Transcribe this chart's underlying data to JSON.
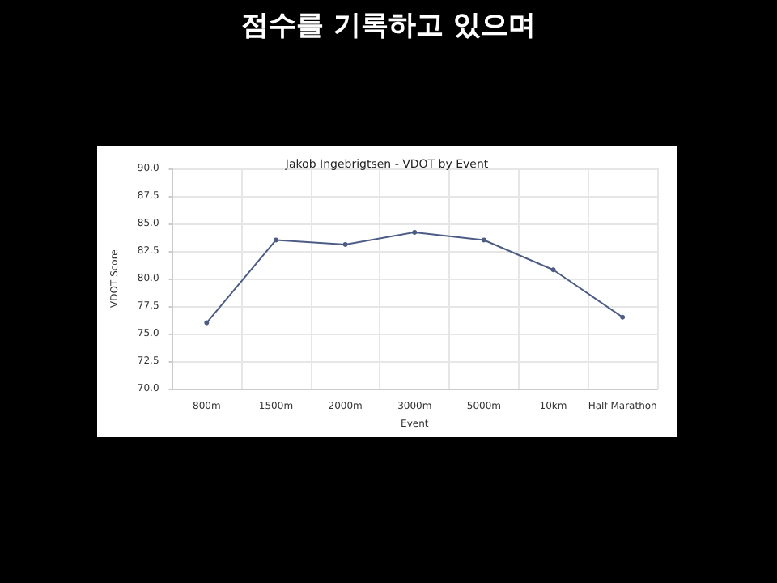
{
  "chart_data": {
    "type": "line",
    "title": "Jakob Ingebrigtsen - VDOT by Event",
    "subtitle": "점수를 기록하고 있으며",
    "xlabel": "Event",
    "ylabel": "VDOT Score",
    "categories": [
      "800m",
      "1500m",
      "2000m",
      "3000m",
      "5000m",
      "10km",
      "Half Marathon"
    ],
    "series": [
      {
        "color": "#4c5c84",
        "values": [
          76.0,
          83.5,
          83.1,
          84.2,
          83.5,
          80.8,
          76.5
        ]
      }
    ],
    "ylim": [
      70,
      90
    ],
    "yticks": [
      {
        "value": 70,
        "label": "70.0"
      },
      {
        "value": 72.5,
        "label": "72.5"
      },
      {
        "value": 75,
        "label": "75.0"
      },
      {
        "value": 77.5,
        "label": "77.5"
      },
      {
        "value": 80,
        "label": "80.0"
      },
      {
        "value": 82.5,
        "label": "82.5"
      },
      {
        "value": 85,
        "label": "85.0"
      },
      {
        "value": 87.5,
        "label": "87.5"
      },
      {
        "value": 90,
        "label": "90.0"
      }
    ],
    "grid": true,
    "marker": "circle",
    "line_style": "solid"
  }
}
